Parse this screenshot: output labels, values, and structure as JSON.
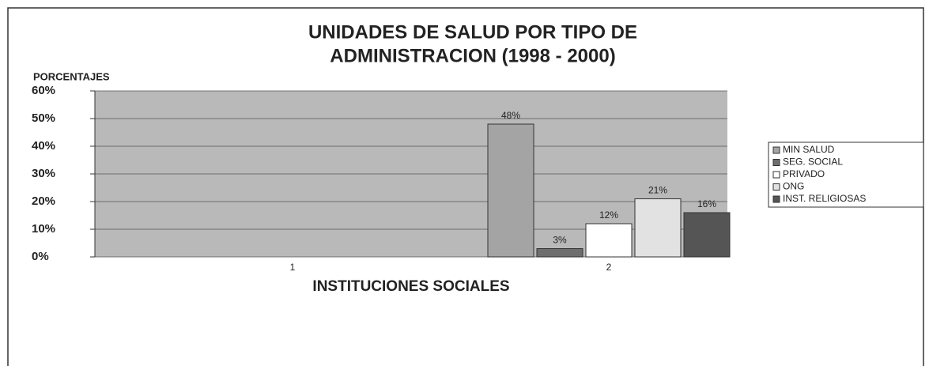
{
  "chart_data": {
    "type": "bar",
    "title_lines": [
      "UNIDADES DE SALUD POR TIPO DE",
      "ADMINISTRACION (1998 - 2000)"
    ],
    "y_label": "PORCENTAJES",
    "x_label": "INSTITUCIONES SOCIALES",
    "categories": [
      "1",
      "2"
    ],
    "series": [
      {
        "name": "MIN SALUD",
        "color": "#a4a4a4",
        "values": [
          null,
          48
        ],
        "value_labels": [
          null,
          "48%"
        ]
      },
      {
        "name": "SEG. SOCIAL",
        "color": "#6e6e6e",
        "values": [
          null,
          3
        ],
        "value_labels": [
          null,
          "3%"
        ]
      },
      {
        "name": "PRIVADO",
        "color": "#ffffff",
        "values": [
          null,
          12
        ],
        "value_labels": [
          null,
          "12%"
        ]
      },
      {
        "name": "ONG",
        "color": "#e2e2e2",
        "values": [
          null,
          21
        ],
        "value_labels": [
          null,
          "21%"
        ]
      },
      {
        "name": "INST. RELIGIOSAS",
        "color": "#555555",
        "values": [
          null,
          16
        ],
        "value_labels": [
          null,
          "16%"
        ]
      }
    ],
    "ylim": [
      0,
      60
    ],
    "yticks": [
      {
        "value": 0,
        "label": "0%"
      },
      {
        "value": 10,
        "label": "10%"
      },
      {
        "value": 20,
        "label": "20%"
      },
      {
        "value": 30,
        "label": "30%"
      },
      {
        "value": 40,
        "label": "40%"
      },
      {
        "value": 50,
        "label": "50%"
      },
      {
        "value": 60,
        "label": "60%"
      }
    ],
    "grid": true,
    "legend": "right"
  }
}
